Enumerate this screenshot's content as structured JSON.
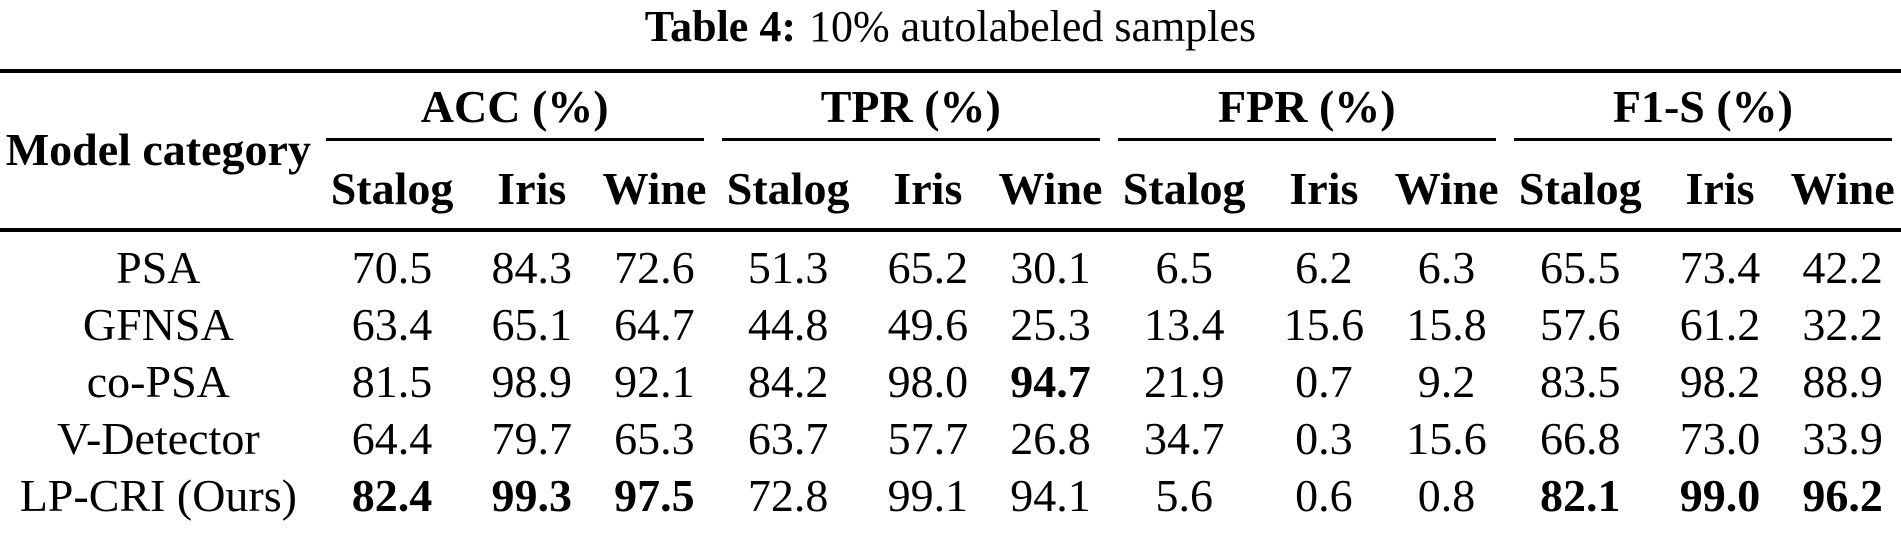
{
  "caption": {
    "label": "Table 4:",
    "text": "10% autolabeled samples"
  },
  "table": {
    "row_header": "Model category",
    "groups": [
      {
        "label": "ACC (%)",
        "subcols": [
          "Stalog",
          "Iris",
          "Wine"
        ]
      },
      {
        "label": "TPR (%)",
        "subcols": [
          "Stalog",
          "Iris",
          "Wine"
        ]
      },
      {
        "label": "FPR (%)",
        "subcols": [
          "Stalog",
          "Iris",
          "Wine"
        ]
      },
      {
        "label": "F1-S (%)",
        "subcols": [
          "Stalog",
          "Iris",
          "Wine"
        ]
      }
    ],
    "rows": [
      {
        "model": "PSA",
        "values": [
          "70.5",
          "84.3",
          "72.6",
          "51.3",
          "65.2",
          "30.1",
          "6.5",
          "6.2",
          "6.3",
          "65.5",
          "73.4",
          "42.2"
        ],
        "bold_indices": []
      },
      {
        "model": "GFNSA",
        "values": [
          "63.4",
          "65.1",
          "64.7",
          "44.8",
          "49.6",
          "25.3",
          "13.4",
          "15.6",
          "15.8",
          "57.6",
          "61.2",
          "32.2"
        ],
        "bold_indices": []
      },
      {
        "model": "co-PSA",
        "values": [
          "81.5",
          "98.9",
          "92.1",
          "84.2",
          "98.0",
          "94.7",
          "21.9",
          "0.7",
          "9.2",
          "83.5",
          "98.2",
          "88.9"
        ],
        "bold_indices": [
          5
        ]
      },
      {
        "model": "V-Detector",
        "values": [
          "64.4",
          "79.7",
          "65.3",
          "63.7",
          "57.7",
          "26.8",
          "34.7",
          "0.3",
          "15.6",
          "66.8",
          "73.0",
          "33.9"
        ],
        "bold_indices": []
      },
      {
        "model": "LP-CRI (Ours)",
        "values": [
          "82.4",
          "99.3",
          "97.5",
          "72.8",
          "99.1",
          "94.1",
          "5.6",
          "0.6",
          "0.8",
          "82.1",
          "99.0",
          "96.2"
        ],
        "bold_indices": [
          0,
          1,
          2,
          9,
          10,
          11
        ]
      }
    ],
    "text_color": "#000000",
    "background_color": "#ffffff"
  }
}
